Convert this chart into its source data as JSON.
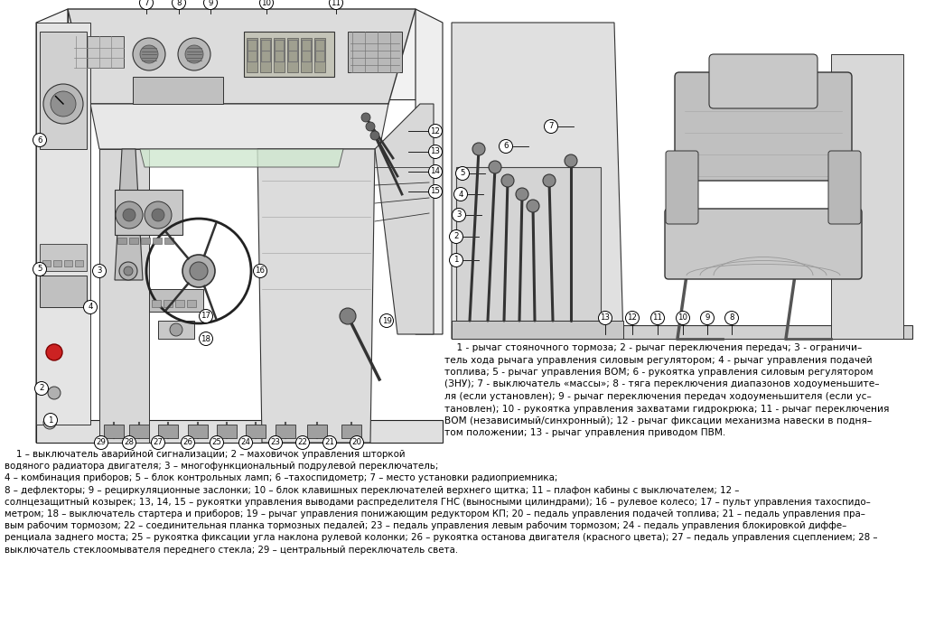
{
  "bg_color": "#ffffff",
  "fig_width": 10.24,
  "fig_height": 6.93,
  "dpi": 100,
  "left_caption_lines": [
    "    1 – выключатель аварийной сигнализации; 2 – маховичок управления шторкой",
    "водяного радиатора двигателя; 3 – многофункциональный подрулевой переключатель;",
    "4 – комбинация приборов; 5 – блок контрольных ламп; 6 –тахоспидометр; 7 – место установки радиоприемника;",
    "8 – дефлекторы; 9 – рециркуляционные заслонки; 10 – блок клавишных переключателей верхнего щитка; 11 – плафон кабины с выключателем; 12 –",
    "солнцезащитный козырек; 13, 14, 15 – рукоятки управления выводами распределителя ГНС (выносными цилиндрами); 16 – рулевое колесо; 17 – пульт управления тахоспидо–",
    "метром; 18 – выключатель стартера и приборов; 19 – рычаг управления понижающим редуктором КП; 20 – педаль управления подачей топлива; 21 – педаль управления пра–",
    "вым рабочим тормозом; 22 – соединительная планка тормозных педалей; 23 – педаль управления левым рабочим тормозом; 24 - педаль управления блокировкой диффе–",
    "ренциала заднего моста; 25 – рукоятка фиксации угла наклона рулевой колонки; 26 – рукоятка останова двигателя (красного цвета); 27 – педаль управления сцеплением; 28 –",
    "выключатель стеклоомывателя переднего стекла; 29 – центральный переключатель света."
  ],
  "right_caption_lines": [
    "    1 - рычаг стояночного тормоза; 2 - рычаг переключения передач; 3 - ограничи–",
    "тель хода рычага управления силовым регулятором; 4 - рычаг управления подачей",
    "топлива; 5 - рычаг управления ВОМ; 6 - рукоятка управления силовым регулятором",
    "(ЗНУ); 7 - выключатель «массы»; 8 - тяга переключения диапазонов ходоуменьшите–",
    "ля (если установлен); 9 - рычаг переключения передач ходоуменьшителя (если ус–",
    "тановлен); 10 - рукоятка управления захватами гидрокрюка; 11 - рычаг переключения",
    "ВОМ (независимый/синхронный); 12 - рычаг фиксации механизма навески в подня–",
    "том положении; 13 - рычаг управления приводом ПВМ."
  ]
}
